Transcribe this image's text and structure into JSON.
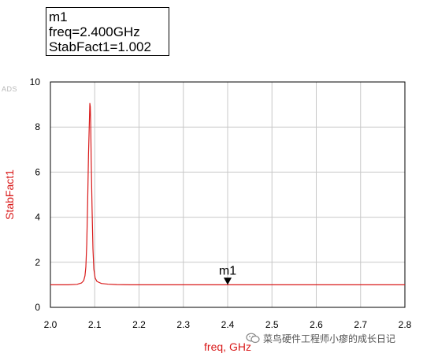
{
  "app_tag": "ADS",
  "marker": {
    "name": "m1",
    "freq_line": "freq=2.400GHz",
    "value_line": "StabFact1=1.002"
  },
  "watermark": {
    "text": "菜鸟硬件工程师小瘳的成长日记",
    "icon": "wechat-icon"
  },
  "colors": {
    "trace": "#d91a1a",
    "axis_label": "#d91a1a",
    "grid": "#c8c8c8",
    "frame": "#000000"
  },
  "chart_data": {
    "type": "line",
    "title": "",
    "xlabel": "freq, GHz",
    "ylabel": "StabFact1",
    "xlim": [
      2.0,
      2.8
    ],
    "ylim": [
      0,
      10
    ],
    "xticks": [
      "2.0",
      "2.1",
      "2.2",
      "2.3",
      "2.4",
      "2.5",
      "2.6",
      "2.7",
      "2.8"
    ],
    "yticks": [
      "0",
      "2",
      "4",
      "6",
      "8",
      "10"
    ],
    "grid": true,
    "series": [
      {
        "values": [
          [
            2.0,
            1.0
          ],
          [
            2.04,
            1.0
          ],
          [
            2.06,
            1.02
          ],
          [
            2.07,
            1.08
          ],
          [
            2.075,
            1.18
          ],
          [
            2.078,
            1.4
          ],
          [
            2.08,
            1.8
          ],
          [
            2.082,
            2.8
          ],
          [
            2.084,
            4.6
          ],
          [
            2.086,
            6.8
          ],
          [
            2.088,
            8.3
          ],
          [
            2.089,
            9.05
          ],
          [
            2.09,
            8.9
          ],
          [
            2.091,
            8.1
          ],
          [
            2.092,
            6.6
          ],
          [
            2.094,
            4.4
          ],
          [
            2.096,
            2.6
          ],
          [
            2.098,
            1.7
          ],
          [
            2.101,
            1.3
          ],
          [
            2.105,
            1.15
          ],
          [
            2.115,
            1.06
          ],
          [
            2.13,
            1.03
          ],
          [
            2.15,
            1.01
          ],
          [
            2.18,
            1.0
          ],
          [
            2.3,
            1.0
          ],
          [
            2.4,
            1.002
          ],
          [
            2.5,
            1.0
          ],
          [
            2.6,
            1.0
          ],
          [
            2.7,
            1.0
          ],
          [
            2.8,
            1.0
          ]
        ]
      }
    ],
    "markers": [
      {
        "name": "m1",
        "x": 2.4,
        "y": 1.002
      }
    ]
  }
}
